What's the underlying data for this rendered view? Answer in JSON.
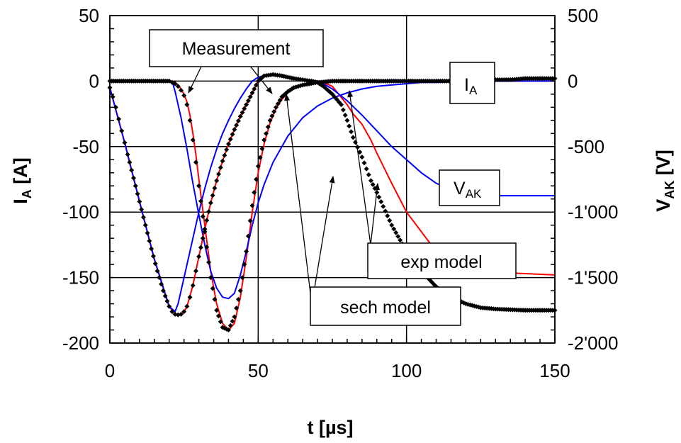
{
  "chart_data": {
    "type": "line",
    "xlabel": "t [µs]",
    "ylabel_left": "I_A [A]",
    "ylabel_right": "V_AK [V]",
    "xlim": [
      0,
      150
    ],
    "ylim_left": [
      -200,
      50
    ],
    "ylim_right": [
      -2000,
      500
    ],
    "x_ticks": [
      0,
      50,
      100,
      150
    ],
    "x_tick_labels": [
      "0",
      "50",
      "100",
      "150"
    ],
    "y_left_ticks": [
      50,
      0,
      -50,
      -100,
      -150,
      -200
    ],
    "y_left_tick_labels": [
      "50",
      "0",
      "-50",
      "-100",
      "-150",
      "-200"
    ],
    "y_right_ticks": [
      500,
      0,
      -500,
      -1000,
      -1500,
      -2000
    ],
    "y_right_tick_labels": [
      "500",
      "0",
      "-500",
      "-1'000",
      "-1'500",
      "-2'000"
    ],
    "grid": true,
    "series_colors": {
      "measurement": "#000000",
      "sech": "#ff0000",
      "exp": "#0000ff"
    },
    "annotations": [
      {
        "text": "Measurement"
      },
      {
        "text": "I",
        "sub": "A"
      },
      {
        "text": "V",
        "sub": "AK"
      },
      {
        "text": "exp model"
      },
      {
        "text": "sech model"
      }
    ],
    "series": [
      {
        "label_ref": "I_A measurement",
        "axis": "left",
        "style": "markers",
        "x": [
          0,
          2,
          4,
          6,
          8,
          10,
          12,
          14,
          16,
          18,
          20,
          21,
          22,
          23,
          24,
          25,
          26,
          27,
          28,
          29,
          30,
          32,
          34,
          36,
          38,
          40,
          42,
          44,
          46,
          48,
          50,
          52,
          54,
          56,
          58,
          60,
          62,
          65,
          70,
          75,
          80,
          85,
          90,
          95,
          100,
          105,
          110,
          115,
          120,
          125,
          130,
          135,
          140,
          145,
          150
        ],
        "y": [
          0,
          0,
          0,
          0,
          0,
          0,
          0,
          0,
          0,
          0,
          0,
          -1,
          -2,
          -4,
          -7,
          -11,
          -18,
          -30,
          -45,
          -62,
          -80,
          -115,
          -150,
          -175,
          -188,
          -190,
          -180,
          -160,
          -130,
          -95,
          -65,
          -45,
          -30,
          -20,
          -12,
          -8,
          -5,
          -3,
          -1,
          0,
          0,
          0,
          0,
          0,
          0,
          0,
          0,
          0,
          1,
          1,
          1,
          1,
          2,
          2,
          2
        ]
      },
      {
        "label_ref": "I_A sech model",
        "axis": "left",
        "style": "line",
        "x": [
          21,
          22,
          23,
          24,
          25,
          26,
          27,
          28,
          29,
          30,
          32,
          34,
          36,
          38,
          40,
          42,
          44,
          46,
          48,
          50,
          52,
          54,
          56,
          58,
          60,
          62,
          65,
          70,
          75,
          80,
          90,
          100,
          120,
          150
        ],
        "y": [
          0,
          -1,
          -3,
          -6,
          -10,
          -16,
          -26,
          -40,
          -56,
          -75,
          -110,
          -145,
          -170,
          -185,
          -190,
          -185,
          -165,
          -135,
          -100,
          -70,
          -48,
          -32,
          -21,
          -14,
          -9,
          -6,
          -3,
          -1,
          0,
          0,
          0,
          0,
          0,
          0
        ]
      },
      {
        "label_ref": "I_A exp model",
        "axis": "left",
        "style": "line",
        "x": [
          21,
          22,
          24,
          26,
          28,
          30,
          32,
          34,
          36,
          38,
          40,
          42,
          44,
          46,
          48,
          50,
          52,
          55,
          60,
          65,
          70,
          75,
          80,
          85,
          90,
          95,
          100,
          105,
          110,
          120,
          130,
          150
        ],
        "y": [
          0,
          -8,
          -28,
          -52,
          -78,
          -102,
          -125,
          -145,
          -158,
          -165,
          -166,
          -162,
          -148,
          -130,
          -110,
          -93,
          -79,
          -62,
          -42,
          -28,
          -19,
          -13,
          -9,
          -6,
          -4,
          -3,
          -2,
          -1,
          -1,
          0,
          0,
          0
        ]
      },
      {
        "label_ref": "V_AK measurement",
        "axis": "right",
        "style": "markers",
        "x": [
          0,
          1,
          2,
          3,
          4,
          5,
          6,
          8,
          10,
          12,
          14,
          16,
          18,
          20,
          21,
          22,
          23,
          24,
          25,
          26,
          27,
          28,
          29,
          30,
          32,
          34,
          36,
          38,
          40,
          42,
          44,
          46,
          48,
          50,
          52,
          55,
          58,
          60,
          62,
          65,
          68,
          70,
          72,
          75,
          78,
          80,
          82,
          85,
          88,
          90,
          95,
          100,
          105,
          110,
          115,
          120,
          125,
          130,
          135,
          140,
          145,
          150
        ],
        "y": [
          -50,
          -120,
          -200,
          -290,
          -380,
          -470,
          -560,
          -740,
          -920,
          -1100,
          -1280,
          -1450,
          -1600,
          -1720,
          -1760,
          -1780,
          -1785,
          -1780,
          -1760,
          -1720,
          -1650,
          -1560,
          -1450,
          -1340,
          -1130,
          -930,
          -760,
          -610,
          -480,
          -370,
          -270,
          -180,
          -90,
          0,
          40,
          50,
          40,
          30,
          20,
          10,
          0,
          -10,
          -40,
          -100,
          -180,
          -300,
          -430,
          -580,
          -760,
          -850,
          -1100,
          -1300,
          -1450,
          -1570,
          -1650,
          -1700,
          -1730,
          -1740,
          -1745,
          -1750,
          -1750,
          -1750
        ]
      },
      {
        "label_ref": "V_AK sech model",
        "axis": "right",
        "style": "line",
        "x": [
          0,
          5,
          10,
          15,
          20,
          22,
          23,
          24,
          25,
          26,
          28,
          30,
          32,
          34,
          36,
          38,
          40,
          42,
          44,
          46,
          48,
          50,
          52,
          55,
          58,
          60,
          62,
          65,
          70,
          72,
          75,
          80,
          82,
          85,
          88,
          90,
          95,
          100,
          110,
          120,
          150
        ],
        "y": [
          -50,
          -470,
          -920,
          -1360,
          -1720,
          -1780,
          -1785,
          -1780,
          -1760,
          -1720,
          -1560,
          -1340,
          -1130,
          -930,
          -760,
          -610,
          -480,
          -370,
          -270,
          -180,
          -90,
          0,
          40,
          50,
          40,
          30,
          20,
          10,
          0,
          -10,
          -40,
          -180,
          -250,
          -330,
          -450,
          -550,
          -780,
          -1000,
          -1300,
          -1450,
          -1480
        ]
      },
      {
        "label_ref": "V_AK exp model",
        "axis": "right",
        "style": "line",
        "x": [
          0,
          5,
          10,
          15,
          20,
          22,
          23,
          24,
          25,
          26,
          28,
          30,
          32,
          34,
          36,
          38,
          40,
          42,
          44,
          46,
          48,
          50,
          52,
          55,
          58,
          60,
          62,
          65,
          70,
          72,
          75,
          80,
          85,
          90,
          95,
          100,
          105,
          110,
          115,
          120,
          130,
          150
        ],
        "y": [
          -50,
          -470,
          -920,
          -1360,
          -1720,
          -1760,
          -1700,
          -1600,
          -1500,
          -1400,
          -1200,
          -1000,
          -820,
          -660,
          -520,
          -400,
          -300,
          -210,
          -130,
          -60,
          0,
          30,
          40,
          45,
          40,
          30,
          20,
          10,
          0,
          -20,
          -60,
          -150,
          -260,
          -380,
          -500,
          -600,
          -700,
          -780,
          -830,
          -860,
          -875,
          -875
        ]
      }
    ]
  }
}
